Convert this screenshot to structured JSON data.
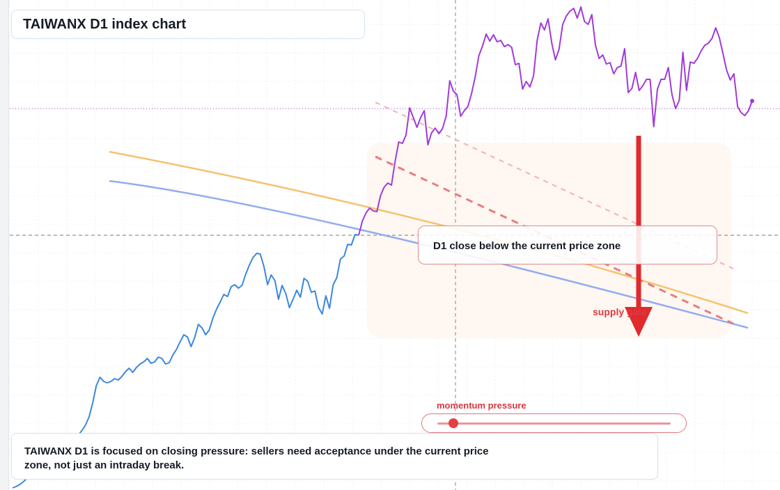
{
  "title": "TAIWANX D1 index chart",
  "callout": "D1 close below the current price zone",
  "zone_label": "supply gate",
  "momentum": {
    "label": "momentum pressure",
    "level": 0.07
  },
  "note": "TAIWANX D1 is focused on closing pressure: sellers need acceptance under the current price zone, not just an intraday break.",
  "colors": {
    "price_early": "#3b87dc",
    "price_late": "#a13ad8",
    "fast_ma": "#f5c36f",
    "slow_ma": "#93acef",
    "resistance": "#e87c81",
    "arrow": "#df2a2e",
    "zone_fill": "#fff6ef"
  },
  "chart_data": {
    "type": "line",
    "x_axis": "bar index (no labels shown)",
    "y_axis": "price (no labels shown)",
    "grid": true,
    "series": [
      {
        "values": [
          3,
          5,
          8,
          12,
          17,
          22,
          28,
          35,
          41,
          48,
          55,
          62,
          68,
          70,
          71,
          73,
          74,
          75,
          79,
          85,
          93,
          105,
          125,
          150,
          162,
          156,
          154,
          156,
          160,
          158,
          163,
          170,
          175,
          169,
          176,
          181,
          184,
          189,
          182,
          184,
          191,
          189,
          181,
          183,
          194,
          202,
          213,
          223,
          220,
          206,
          219,
          238,
          233,
          223,
          230,
          247,
          260,
          270,
          281,
          278,
          292,
          295,
          290,
          294,
          310,
          323,
          334,
          340,
          339,
          321,
          295,
          309,
          301,
          274,
          294,
          282,
          262,
          274,
          287,
          277,
          304,
          300,
          284,
          286,
          262,
          253,
          279,
          261,
          295,
          305,
          332,
          336,
          353,
          352,
          367,
          366,
          386,
          398,
          405,
          401,
          400,
          423,
          435,
          441,
          438,
          472,
          500,
          498,
          510,
          549,
          535,
          521,
          535,
          545,
          496,
          513,
          520,
          512,
          519,
          537,
          588,
          573,
          568,
          537,
          545,
          551,
          570,
          594,
          624,
          638,
          655,
          645,
          654,
          644,
          646,
          637,
          640,
          636,
          611,
          613,
          576,
          587,
          579,
          595,
          646,
          671,
          661,
          677,
          642,
          618,
          633,
          669,
          681,
          688,
          692,
          678,
          694,
          673,
          669,
          683,
          639,
          620,
          625,
          612,
          614,
          598,
          607,
          609,
          634,
          571,
          577,
          600,
          574,
          581,
          590,
          590,
          522,
          576,
          590,
          590,
          607,
          568,
          548,
          560,
          629,
          574,
          615,
          613,
          620,
          631,
          639,
          642,
          649,
          664,
          650,
          627,
          603,
          589,
          598,
          551,
          542,
          538,
          545,
          559
        ]
      }
    ],
    "ylim": [
      0,
      704
    ]
  }
}
